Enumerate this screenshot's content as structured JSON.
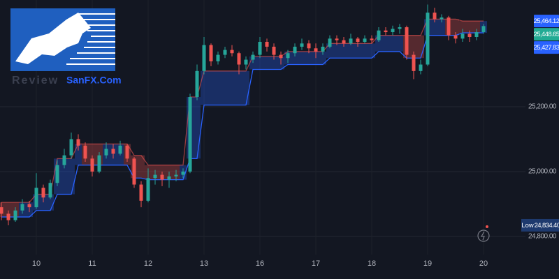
{
  "watermark": {
    "line1": "Review",
    "line2": "SanFX.Com"
  },
  "chart_data": {
    "type": "candlestick",
    "x": [
      null,
      null,
      null,
      null,
      null,
      "10",
      null,
      null,
      null,
      null,
      null,
      null,
      null,
      "11",
      null,
      null,
      null,
      null,
      null,
      null,
      null,
      "12",
      null,
      null,
      null,
      null,
      null,
      null,
      null,
      "13",
      null,
      null,
      null,
      null,
      null,
      null,
      null,
      "16",
      null,
      null,
      null,
      null,
      null,
      null,
      null,
      "17",
      null,
      null,
      null,
      null,
      null,
      null,
      null,
      "18",
      null,
      null,
      null,
      null,
      null,
      null,
      null,
      "19",
      null,
      null,
      null,
      null,
      null,
      null,
      null,
      "20"
    ],
    "open": [
      24890,
      24870,
      24850,
      24880,
      24900,
      24890,
      24950,
      24920,
      24965,
      25020,
      25050,
      25100,
      25080,
      25040,
      25000,
      25050,
      25070,
      25055,
      25080,
      25040,
      24960,
      24910,
      24980,
      24990,
      24975,
      24985,
      24990,
      25000,
      25230,
      25310,
      25390,
      25340,
      25360,
      25375,
      25365,
      25330,
      25345,
      25360,
      25400,
      25385,
      25360,
      25350,
      25365,
      25385,
      25395,
      25380,
      25370,
      25385,
      25410,
      25405,
      25395,
      25410,
      25400,
      25410,
      25405,
      25435,
      25430,
      25440,
      25445,
      25360,
      25310,
      25330,
      25490,
      25470,
      25475,
      25420,
      25410,
      25425,
      25415,
      25430
    ],
    "high": [
      24905,
      24880,
      24890,
      24915,
      24910,
      24995,
      24960,
      24975,
      25035,
      25070,
      25120,
      25115,
      25090,
      25050,
      25060,
      25090,
      25085,
      25095,
      25085,
      25045,
      24970,
      25010,
      25005,
      25000,
      25000,
      25005,
      25010,
      25240,
      25330,
      25415,
      25395,
      25370,
      25385,
      25390,
      25370,
      25355,
      25370,
      25415,
      25410,
      25395,
      25370,
      25375,
      25395,
      25410,
      25405,
      25395,
      25395,
      25420,
      25420,
      25415,
      25425,
      25415,
      25420,
      25420,
      25445,
      25445,
      25450,
      25455,
      25450,
      25370,
      25345,
      25515,
      25505,
      25485,
      25480,
      25430,
      25440,
      25435,
      25440,
      25455
    ],
    "low": [
      24850,
      24834.4,
      24845,
      24870,
      24875,
      24885,
      24905,
      24915,
      24955,
      25010,
      25040,
      25065,
      25030,
      24985,
      24995,
      25040,
      25040,
      25050,
      25030,
      24950,
      24890,
      24905,
      24960,
      24955,
      24950,
      24970,
      24980,
      24995,
      25220,
      25300,
      25325,
      25330,
      25350,
      25355,
      25300,
      25315,
      25335,
      25350,
      25370,
      25345,
      25330,
      25335,
      25355,
      25375,
      25365,
      25350,
      25360,
      25380,
      25390,
      25385,
      25390,
      25385,
      25395,
      25395,
      25400,
      25420,
      25420,
      25425,
      25345,
      25285,
      25300,
      25325,
      25460,
      25460,
      25405,
      25395,
      25400,
      25400,
      25405,
      25425
    ],
    "close": [
      24870,
      24850,
      24880,
      24900,
      24890,
      24950,
      24920,
      24965,
      25020,
      25050,
      25100,
      25080,
      25040,
      25000,
      25050,
      25070,
      25055,
      25080,
      25040,
      24960,
      24910,
      24980,
      24990,
      24975,
      24985,
      24990,
      25000,
      25230,
      25310,
      25390,
      25340,
      25360,
      25375,
      25365,
      25330,
      25345,
      25360,
      25400,
      25385,
      25360,
      25350,
      25365,
      25385,
      25395,
      25380,
      25370,
      25385,
      25410,
      25405,
      25395,
      25410,
      25400,
      25410,
      25405,
      25435,
      25430,
      25440,
      25445,
      25360,
      25310,
      25330,
      25490,
      25470,
      25475,
      25420,
      25410,
      25425,
      25415,
      25430,
      25448.65
    ],
    "up_color": "#26a69a",
    "down_color": "#ef5350",
    "band": {
      "color": "#2962ff",
      "upper": [
        24905,
        24905,
        24905,
        24905,
        24905,
        24930,
        24930,
        24930,
        25040,
        25040,
        25040,
        25085,
        25085,
        25085,
        25085,
        25085,
        25085,
        25085,
        25085,
        25050,
        25050,
        25020,
        25020,
        25020,
        25020,
        25020,
        25020,
        25230,
        25230,
        25310,
        25310,
        25310,
        25310,
        25310,
        25310,
        25310,
        25355,
        25355,
        25355,
        25355,
        25355,
        25370,
        25370,
        25370,
        25370,
        25370,
        25370,
        25395,
        25395,
        25395,
        25395,
        25395,
        25395,
        25395,
        25420,
        25420,
        25420,
        25420,
        25420,
        25420,
        25420,
        25470,
        25470,
        25470,
        25470,
        25470,
        25464.12,
        25464.12,
        25464.12,
        25464.12
      ],
      "lower": [
        24860,
        24860,
        24860,
        24860,
        24860,
        24880,
        24880,
        24880,
        24930,
        24930,
        24930,
        25020,
        25020,
        25020,
        25020,
        25020,
        25020,
        25020,
        25020,
        24980,
        24980,
        24975,
        24975,
        24975,
        24975,
        24975,
        24975,
        25040,
        25040,
        25205,
        25205,
        25205,
        25205,
        25205,
        25205,
        25205,
        25315,
        25315,
        25315,
        25315,
        25315,
        25330,
        25330,
        25330,
        25330,
        25330,
        25330,
        25350,
        25350,
        25350,
        25350,
        25350,
        25350,
        25350,
        25370,
        25370,
        25370,
        25370,
        25350,
        25350,
        25350,
        25420,
        25420,
        25420,
        25420,
        25420,
        25427.83,
        25427.83,
        25427.83,
        25427.83
      ]
    },
    "ylim": [
      24744,
      25529
    ],
    "yticks": [
      {
        "value": 24800,
        "label": "24,800.00"
      },
      {
        "value": 25000,
        "label": "25,000.00"
      },
      {
        "value": 25200,
        "label": "25,200.00"
      }
    ],
    "grid": true,
    "price_labels": [
      {
        "value": 25464.12,
        "label": "25,464.12",
        "color": "#2962ff"
      },
      {
        "value": 25448.65,
        "label": "25,448.65",
        "color": "#22ab94"
      },
      {
        "value": 25427.83,
        "label": "25,427.83",
        "color": "#2962ff"
      }
    ],
    "low_label": {
      "name": "Low",
      "value": 24834.4,
      "label": "24,834.40",
      "color": "#1e3a6e"
    }
  }
}
